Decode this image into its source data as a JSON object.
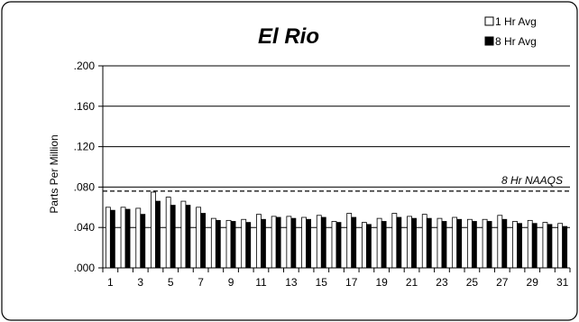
{
  "chart_data": {
    "type": "bar",
    "title": "El Rio",
    "xlabel": "",
    "ylabel": "Parts Per Million",
    "categories": [
      1,
      2,
      3,
      4,
      5,
      6,
      7,
      8,
      9,
      10,
      11,
      12,
      13,
      14,
      15,
      16,
      17,
      18,
      19,
      20,
      21,
      22,
      23,
      24,
      25,
      26,
      27,
      28,
      29,
      30,
      31
    ],
    "x_tick_labels": [
      "1",
      "3",
      "5",
      "7",
      "9",
      "11",
      "13",
      "15",
      "17",
      "19",
      "21",
      "23",
      "25",
      "27",
      "29",
      "31"
    ],
    "y_tick_labels": [
      ".000",
      ".040",
      ".080",
      ".120",
      ".160",
      ".200"
    ],
    "y_ticks": [
      0,
      0.04,
      0.08,
      0.12,
      0.16,
      0.2
    ],
    "ylim": [
      0,
      0.2
    ],
    "grid": true,
    "legend_position": "top-right",
    "series": [
      {
        "name": "1 Hr Avg",
        "color": "#ffffff",
        "values": [
          0.06,
          0.06,
          0.059,
          0.075,
          0.07,
          0.066,
          0.06,
          0.049,
          0.047,
          0.048,
          0.053,
          0.051,
          0.051,
          0.05,
          0.052,
          0.046,
          0.054,
          0.045,
          0.049,
          0.054,
          0.051,
          0.053,
          0.049,
          0.05,
          0.048,
          0.048,
          0.052,
          0.046,
          0.047,
          0.045,
          0.044
        ]
      },
      {
        "name": "8 Hr Avg",
        "color": "#000000",
        "values": [
          0.057,
          0.058,
          0.053,
          0.066,
          0.062,
          0.062,
          0.054,
          0.047,
          0.046,
          0.045,
          0.048,
          0.05,
          0.049,
          0.048,
          0.05,
          0.045,
          0.05,
          0.043,
          0.046,
          0.05,
          0.049,
          0.049,
          0.046,
          0.048,
          0.046,
          0.046,
          0.048,
          0.044,
          0.044,
          0.043,
          0.041
        ]
      }
    ],
    "reference_lines": [
      {
        "label": "8 Hr NAAQS",
        "value": 0.076,
        "style": "dashed",
        "color": "#000000"
      }
    ]
  }
}
